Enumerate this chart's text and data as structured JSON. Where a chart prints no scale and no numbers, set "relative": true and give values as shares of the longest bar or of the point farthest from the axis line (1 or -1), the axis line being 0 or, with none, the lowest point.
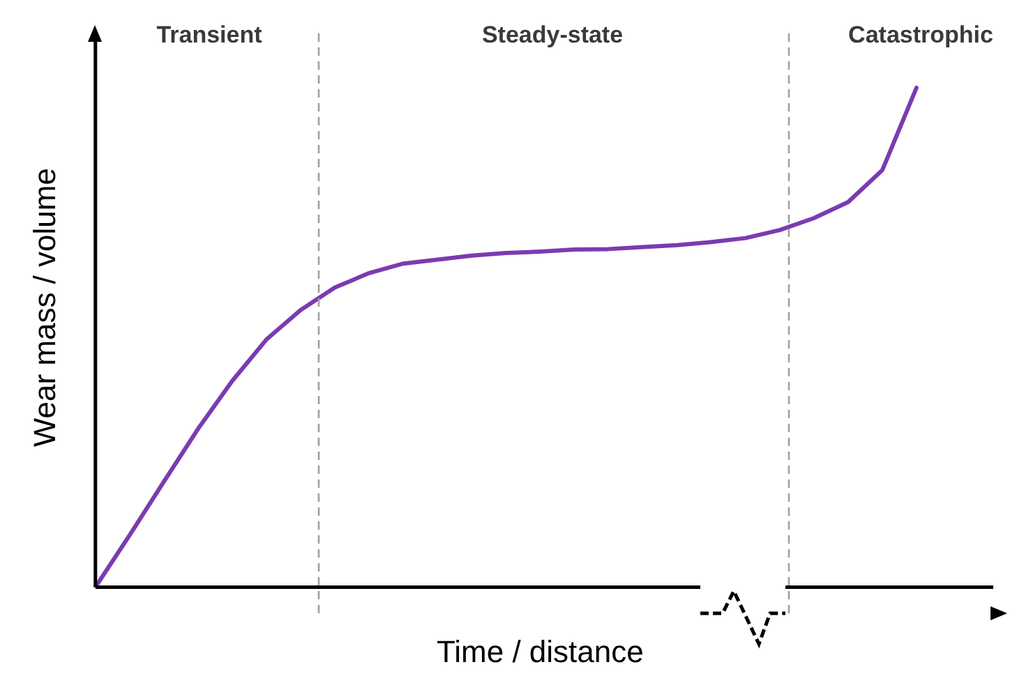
{
  "chart_data": {
    "type": "line",
    "relative": true,
    "xlabel": "Time / distance",
    "ylabel": "Wear mass / volume",
    "legend": false,
    "marker": "none",
    "line_style": "solid",
    "annotations": [
      "Transient",
      "Steady-state",
      "Catastrophic"
    ],
    "categories": [
      null,
      null,
      null,
      null,
      null,
      null,
      null,
      null,
      null,
      null,
      null,
      null,
      null,
      null,
      null,
      null,
      null,
      null,
      null,
      null,
      null,
      null,
      null,
      null,
      null,
      null,
      null
    ],
    "series": [
      {
        "color": "#7b3bb0",
        "values": [
          0,
          0.104,
          0.211,
          0.317,
          0.413,
          0.496,
          0.555,
          0.6,
          0.629,
          0.648,
          0.656,
          0.664,
          0.669,
          0.672,
          0.676,
          0.677,
          0.681,
          0.685,
          0.691,
          0.699,
          0.715,
          0.739,
          0.771,
          0.835,
          1,
          null,
          null
        ]
      }
    ]
  }
}
